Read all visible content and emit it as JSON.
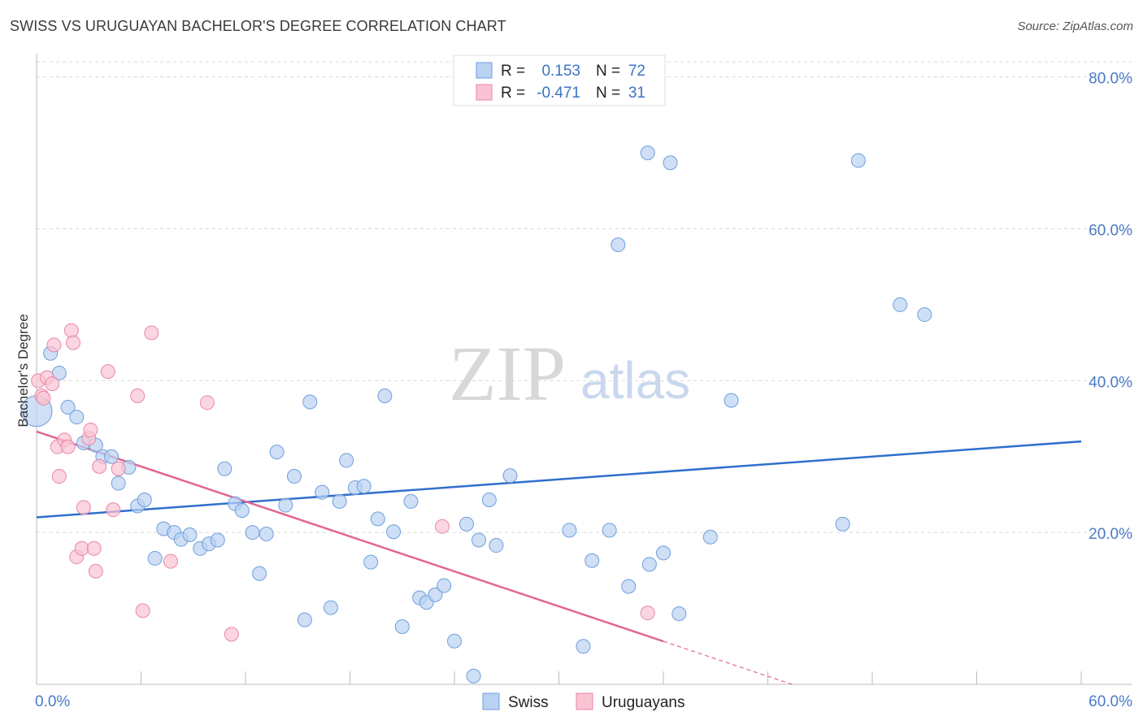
{
  "header": {
    "title": "SWISS VS URUGUAYAN BACHELOR'S DEGREE CORRELATION CHART",
    "source": "Source: ZipAtlas.com"
  },
  "watermark": {
    "zip": "ZIP",
    "atlas": "atlas"
  },
  "colors": {
    "swiss_fill": "#b9d2f2",
    "swiss_stroke": "#6f9fdc",
    "swiss_line": "#2f6fcd",
    "uru_fill": "#f9c3d3",
    "uru_stroke": "#e987a6",
    "uru_line": "#e2668f",
    "grid": "#d9d9d9",
    "axis": "#bbbbbb",
    "label": "#4a7bc8"
  },
  "chart_data": {
    "type": "scatter",
    "title": "SWISS VS URUGUAYAN BACHELOR'S DEGREE CORRELATION CHART",
    "xlabel": "",
    "ylabel": "Bachelor's Degree",
    "xlim": [
      0,
      60
    ],
    "ylim": [
      0,
      82
    ],
    "x_tick_labels": [
      "0.0%",
      "60.0%"
    ],
    "y_ticks": [
      20,
      40,
      60,
      80
    ],
    "y_tick_labels": [
      "20.0%",
      "40.0%",
      "60.0%",
      "80.0%"
    ],
    "grid": true,
    "legend": {
      "position": "top-center",
      "entries": [
        {
          "series": "Swiss",
          "r_label": "R =",
          "r_value": "0.153",
          "n_label": "N =",
          "n_value": "72"
        },
        {
          "series": "Uruguayans",
          "r_label": "R =",
          "r_value": "-0.471",
          "n_label": "N =",
          "n_value": "31"
        }
      ]
    },
    "bottom_legend": [
      "Swiss",
      "Uruguayans"
    ],
    "series": [
      {
        "name": "Swiss",
        "trend": {
          "x": [
            0,
            60
          ],
          "y": [
            22.0,
            32.0
          ]
        },
        "points": [
          [
            0.0,
            36.0
          ],
          [
            0.8,
            43.6
          ],
          [
            1.3,
            41.0
          ],
          [
            1.8,
            36.5
          ],
          [
            2.3,
            35.2
          ],
          [
            2.7,
            31.8
          ],
          [
            3.4,
            31.5
          ],
          [
            3.8,
            30.0
          ],
          [
            4.3,
            30.0
          ],
          [
            4.7,
            26.5
          ],
          [
            5.3,
            28.6
          ],
          [
            5.8,
            23.5
          ],
          [
            6.2,
            24.3
          ],
          [
            6.8,
            16.6
          ],
          [
            7.3,
            20.5
          ],
          [
            7.9,
            20.0
          ],
          [
            8.3,
            19.1
          ],
          [
            8.8,
            19.7
          ],
          [
            9.4,
            17.9
          ],
          [
            9.9,
            18.5
          ],
          [
            10.4,
            19.0
          ],
          [
            10.8,
            28.4
          ],
          [
            11.4,
            23.8
          ],
          [
            11.8,
            22.9
          ],
          [
            12.4,
            20.0
          ],
          [
            12.8,
            14.6
          ],
          [
            13.2,
            19.8
          ],
          [
            13.8,
            30.6
          ],
          [
            14.3,
            23.6
          ],
          [
            14.8,
            27.4
          ],
          [
            15.4,
            8.5
          ],
          [
            15.7,
            37.2
          ],
          [
            16.4,
            25.3
          ],
          [
            16.9,
            10.1
          ],
          [
            17.4,
            24.1
          ],
          [
            17.8,
            29.5
          ],
          [
            18.3,
            25.9
          ],
          [
            18.8,
            26.1
          ],
          [
            19.2,
            16.1
          ],
          [
            19.6,
            21.8
          ],
          [
            20.0,
            38.0
          ],
          [
            20.5,
            20.1
          ],
          [
            21.0,
            7.6
          ],
          [
            21.5,
            24.1
          ],
          [
            22.0,
            11.4
          ],
          [
            22.4,
            10.8
          ],
          [
            22.9,
            11.8
          ],
          [
            23.4,
            13.0
          ],
          [
            24.0,
            5.7
          ],
          [
            24.7,
            21.1
          ],
          [
            25.1,
            1.1
          ],
          [
            25.4,
            19.0
          ],
          [
            26.0,
            24.3
          ],
          [
            26.4,
            18.3
          ],
          [
            27.2,
            27.5
          ],
          [
            30.6,
            20.3
          ],
          [
            31.4,
            5.0
          ],
          [
            31.9,
            16.3
          ],
          [
            32.9,
            20.3
          ],
          [
            33.4,
            57.9
          ],
          [
            34.0,
            12.9
          ],
          [
            35.1,
            70.0
          ],
          [
            35.2,
            15.8
          ],
          [
            36.0,
            17.3
          ],
          [
            36.4,
            68.7
          ],
          [
            36.9,
            9.3
          ],
          [
            38.7,
            19.4
          ],
          [
            39.9,
            37.4
          ],
          [
            46.3,
            21.1
          ],
          [
            47.2,
            69.0
          ],
          [
            49.6,
            50.0
          ],
          [
            51.0,
            48.7
          ]
        ]
      },
      {
        "name": "Uruguayans",
        "trend": {
          "x": [
            0,
            40.0
          ],
          "y": [
            33.3,
            2.6
          ]
        },
        "points": [
          [
            0.1,
            40.0
          ],
          [
            0.3,
            38.0
          ],
          [
            0.6,
            40.4
          ],
          [
            0.9,
            39.6
          ],
          [
            1.0,
            44.7
          ],
          [
            1.2,
            31.3
          ],
          [
            1.3,
            27.4
          ],
          [
            1.6,
            32.2
          ],
          [
            1.8,
            31.3
          ],
          [
            2.0,
            46.6
          ],
          [
            2.1,
            45.0
          ],
          [
            2.3,
            16.8
          ],
          [
            2.6,
            17.9
          ],
          [
            2.7,
            23.3
          ],
          [
            3.0,
            32.4
          ],
          [
            3.1,
            33.5
          ],
          [
            3.3,
            17.9
          ],
          [
            3.4,
            14.9
          ],
          [
            3.6,
            28.7
          ],
          [
            4.1,
            41.2
          ],
          [
            4.4,
            23.0
          ],
          [
            4.7,
            28.4
          ],
          [
            5.8,
            38.0
          ],
          [
            6.1,
            9.7
          ],
          [
            6.6,
            46.3
          ],
          [
            7.7,
            16.2
          ],
          [
            9.8,
            37.1
          ],
          [
            11.2,
            6.6
          ],
          [
            23.3,
            20.8
          ],
          [
            35.1,
            9.4
          ],
          [
            0.4,
            37.7
          ]
        ]
      }
    ]
  }
}
